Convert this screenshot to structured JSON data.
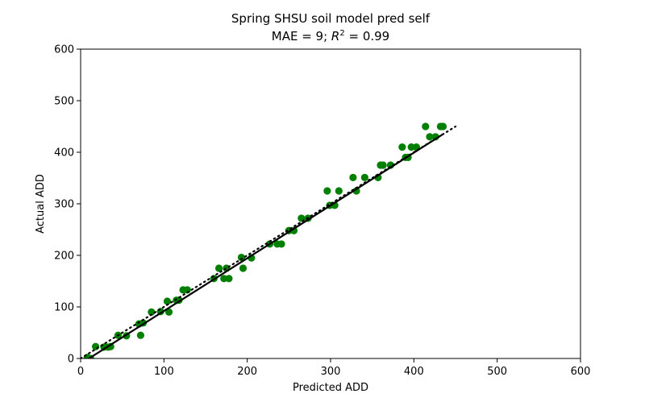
{
  "chart_data": {
    "type": "scatter",
    "title": "Spring SHSU soil model pred self",
    "subtitle": {
      "prefix": "MAE = 9; ",
      "r_symbol": "R",
      "r_exp": "2",
      "suffix": " = 0.99"
    },
    "xlabel": "Predicted ADD",
    "ylabel": "Actual ADD",
    "xlim": [
      0,
      600
    ],
    "ylim": [
      0,
      600
    ],
    "xticks": [
      0,
      100,
      200,
      300,
      400,
      500,
      600
    ],
    "yticks": [
      0,
      100,
      200,
      300,
      400,
      500,
      600
    ],
    "grid": false,
    "marker_color": "#008000",
    "series": [
      {
        "points": [
          [
            8,
            2
          ],
          [
            12,
            0
          ],
          [
            18,
            23
          ],
          [
            28,
            22
          ],
          [
            33,
            22
          ],
          [
            36,
            23
          ],
          [
            45,
            45
          ],
          [
            55,
            44
          ],
          [
            70,
            67
          ],
          [
            72,
            45
          ],
          [
            75,
            69
          ],
          [
            85,
            90
          ],
          [
            96,
            91
          ],
          [
            104,
            111
          ],
          [
            106,
            90
          ],
          [
            115,
            113
          ],
          [
            118,
            113
          ],
          [
            123,
            133
          ],
          [
            128,
            133
          ],
          [
            160,
            155
          ],
          [
            166,
            175
          ],
          [
            172,
            155
          ],
          [
            175,
            175
          ],
          [
            178,
            155
          ],
          [
            193,
            196
          ],
          [
            195,
            175
          ],
          [
            205,
            195
          ],
          [
            227,
            222
          ],
          [
            236,
            222
          ],
          [
            241,
            222
          ],
          [
            250,
            248
          ],
          [
            256,
            248
          ],
          [
            265,
            272
          ],
          [
            273,
            272
          ],
          [
            296,
            325
          ],
          [
            299,
            297
          ],
          [
            305,
            297
          ],
          [
            310,
            325
          ],
          [
            327,
            351
          ],
          [
            331,
            325
          ],
          [
            341,
            351
          ],
          [
            357,
            351
          ],
          [
            360,
            375
          ],
          [
            363,
            375
          ],
          [
            372,
            375
          ],
          [
            386,
            410
          ],
          [
            390,
            390
          ],
          [
            393,
            390
          ],
          [
            397,
            410
          ],
          [
            403,
            410
          ],
          [
            414,
            450
          ],
          [
            419,
            430
          ],
          [
            426,
            430
          ],
          [
            432,
            450
          ],
          [
            435,
            450
          ]
        ]
      }
    ],
    "fit_line": {
      "x": [
        10,
        435
      ],
      "y": [
        0,
        435
      ],
      "style": "solid",
      "color": "#000000"
    },
    "identity_line": {
      "x": [
        0,
        450
      ],
      "y": [
        0,
        450
      ],
      "style": "dotted",
      "color": "#000000"
    }
  }
}
